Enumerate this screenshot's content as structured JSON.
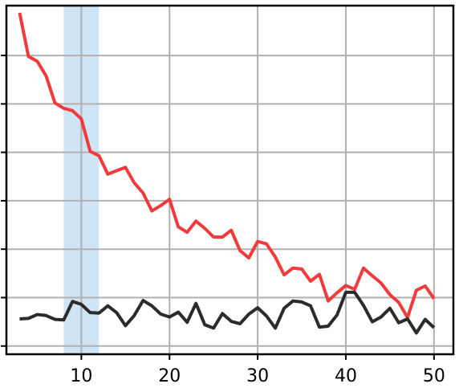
{
  "chart_data": {
    "type": "line",
    "title": "",
    "xlabel": "",
    "ylabel": "",
    "xlim": [
      1.5,
      52.2
    ],
    "ylim": [
      -1.7,
      70.3
    ],
    "x_ticks": [
      10,
      20,
      30,
      40,
      50
    ],
    "x_tick_labels": [
      "10",
      "20",
      "30",
      "40",
      "50"
    ],
    "y_ticks": [
      0,
      10,
      20,
      30,
      40,
      50,
      60
    ],
    "y_tick_labels": [],
    "grid": true,
    "legend": "none",
    "highlight_band": {
      "x0": 8,
      "x1": 12,
      "color": "#cfe4f5"
    },
    "x": [
      3,
      4,
      5,
      6,
      7,
      8,
      9,
      10,
      11,
      12,
      13,
      14,
      15,
      16,
      17,
      18,
      19,
      20,
      21,
      22,
      23,
      24,
      25,
      26,
      27,
      28,
      29,
      30,
      31,
      32,
      33,
      34,
      35,
      36,
      37,
      38,
      39,
      40,
      41,
      42,
      43,
      44,
      45,
      46,
      47,
      48,
      49,
      50
    ],
    "series": [
      {
        "color": "#f03a3c",
        "values": [
          68.8,
          59.8,
          58.8,
          55.8,
          50.2,
          49.1,
          48.6,
          46.9,
          40.2,
          39.3,
          35.5,
          36.2,
          36.9,
          33.7,
          31.6,
          27.9,
          29.0,
          30.3,
          24.6,
          23.5,
          25.8,
          24.3,
          22.5,
          22.5,
          23.9,
          19.7,
          18.2,
          21.6,
          21.1,
          18.4,
          14.7,
          16.1,
          15.9,
          13.4,
          14.8,
          9.3,
          11.0,
          12.5,
          11.7,
          16.1,
          14.5,
          13.0,
          10.6,
          9.0,
          5.9,
          11.5,
          12.4,
          9.8
        ]
      },
      {
        "color": "#2b2b2b",
        "values": [
          5.6,
          5.7,
          6.5,
          6.3,
          5.5,
          5.4,
          9.2,
          8.6,
          6.9,
          6.8,
          8.3,
          6.9,
          4.2,
          6.3,
          9.4,
          8.3,
          6.6,
          6.0,
          7.0,
          4.9,
          8.8,
          4.4,
          3.7,
          6.7,
          5.1,
          4.6,
          6.6,
          7.9,
          6.2,
          3.7,
          7.8,
          9.3,
          9.1,
          8.3,
          3.9,
          4.1,
          6.4,
          11.1,
          11.1,
          8.4,
          5.0,
          6.0,
          7.8,
          4.8,
          5.6,
          2.7,
          5.5,
          3.8
        ]
      }
    ]
  }
}
